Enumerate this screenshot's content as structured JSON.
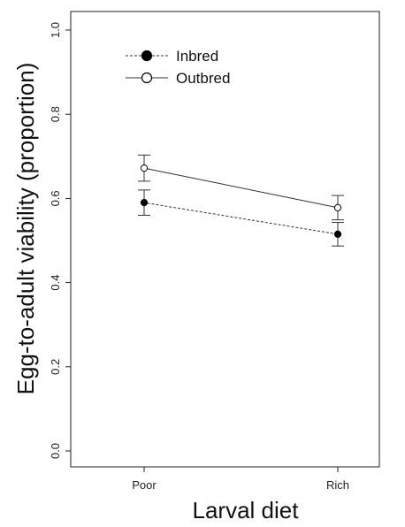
{
  "chart_data": {
    "type": "line",
    "title": "",
    "xlabel": "Larval diet",
    "ylabel": "Egg-to-adult viability (proportion)",
    "categories": [
      "Poor",
      "Rich"
    ],
    "ylim": [
      0.0,
      1.0
    ],
    "yticks": [
      "0.0",
      "0.2",
      "0.4",
      "0.6",
      "0.8",
      "1.0"
    ],
    "grid": false,
    "legend_position": "top-left",
    "series": [
      {
        "name": "Inbred",
        "values": [
          0.59,
          0.515
        ],
        "error_low": [
          0.56,
          0.487
        ],
        "error_high": [
          0.62,
          0.543
        ],
        "marker": "filled-circle",
        "line_style": "dashed"
      },
      {
        "name": "Outbred",
        "values": [
          0.672,
          0.578
        ],
        "error_low": [
          0.641,
          0.549
        ],
        "error_high": [
          0.703,
          0.607
        ],
        "marker": "open-circle",
        "line_style": "solid"
      }
    ]
  }
}
